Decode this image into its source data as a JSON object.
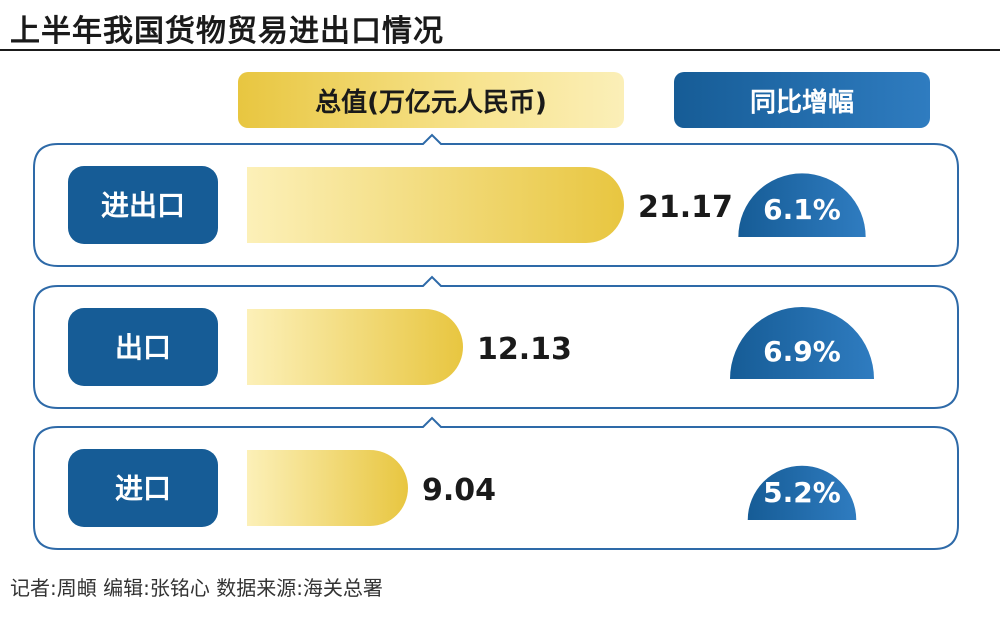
{
  "title": "上半年我国货物贸易进出口情况",
  "headers": {
    "total_value": "总值(万亿元人民币)",
    "yoy_growth": "同比增幅"
  },
  "footer": "记者:周頔  编辑:张铭心  数据来源:海关总署",
  "colors": {
    "navy": "#165c96",
    "gold": "#e8c640",
    "gold_light": "#fcf0b8",
    "outline": "#2e6aa8"
  },
  "chart_data": {
    "type": "bar",
    "categories": [
      "进出口",
      "出口",
      "进口"
    ],
    "series": [
      {
        "values": [
          21.17,
          12.13,
          9.04
        ]
      }
    ],
    "value_labels": [
      "21.17",
      "12.13",
      "9.04"
    ],
    "growth": [
      6.1,
      6.9,
      5.2
    ],
    "growth_labels": [
      "6.1%",
      "6.9%",
      "5.2%"
    ]
  }
}
